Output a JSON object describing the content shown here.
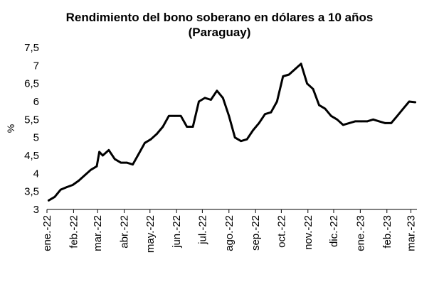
{
  "chart_data": {
    "type": "line",
    "title": "Rendimiento del bono soberano en dólares a 10 años",
    "subtitle": "(Paraguay)",
    "xlabel": "",
    "ylabel": "%",
    "ylim": [
      3,
      7.5
    ],
    "yticks": [
      "3",
      "3,5",
      "4",
      "4,5",
      "5",
      "5,5",
      "6",
      "6,5",
      "7",
      "7,5"
    ],
    "xticks": [
      "ene.-22",
      "feb.-22",
      "mar.-22",
      "abr.-22",
      "may.-22",
      "jun.-22",
      "jul.-22",
      "ago.-22",
      "sep.-22",
      "oct.-22",
      "nov.-22",
      "dic.-22",
      "ene.-23",
      "feb.-23",
      "mar.-23"
    ],
    "grid": false,
    "line_color": "#000000",
    "series": [
      {
        "x": [
          "2022-01-03",
          "2022-01-10",
          "2022-01-17",
          "2022-01-24",
          "2022-01-31",
          "2022-02-07",
          "2022-02-14",
          "2022-02-21",
          "2022-02-28",
          "2022-03-03",
          "2022-03-07",
          "2022-03-14",
          "2022-03-21",
          "2022-03-28",
          "2022-04-04",
          "2022-04-11",
          "2022-04-18",
          "2022-04-25",
          "2022-05-02",
          "2022-05-09",
          "2022-05-16",
          "2022-05-23",
          "2022-05-30",
          "2022-06-06",
          "2022-06-13",
          "2022-06-20",
          "2022-06-27",
          "2022-07-04",
          "2022-07-11",
          "2022-07-18",
          "2022-07-25",
          "2022-08-01",
          "2022-08-08",
          "2022-08-15",
          "2022-08-22",
          "2022-08-29",
          "2022-09-05",
          "2022-09-12",
          "2022-09-19",
          "2022-09-26",
          "2022-10-03",
          "2022-10-10",
          "2022-10-17",
          "2022-10-24",
          "2022-10-31",
          "2022-11-07",
          "2022-11-14",
          "2022-11-21",
          "2022-11-28",
          "2022-12-05",
          "2022-12-12",
          "2022-12-19",
          "2022-12-26",
          "2023-01-02",
          "2023-01-09",
          "2023-01-16",
          "2023-01-23",
          "2023-01-30",
          "2023-02-06",
          "2023-02-13",
          "2023-02-20",
          "2023-02-27",
          "2023-03-06"
        ],
        "values": [
          3.25,
          3.35,
          3.55,
          3.62,
          3.68,
          3.8,
          3.95,
          4.1,
          4.2,
          4.6,
          4.5,
          4.65,
          4.4,
          4.3,
          4.3,
          4.25,
          4.55,
          4.85,
          4.95,
          5.1,
          5.3,
          5.6,
          5.6,
          5.6,
          5.3,
          5.3,
          6.0,
          6.1,
          6.05,
          6.3,
          6.1,
          5.6,
          5.0,
          4.9,
          4.95,
          5.2,
          5.4,
          5.65,
          5.7,
          6.0,
          6.7,
          6.75,
          6.9,
          7.05,
          6.5,
          6.35,
          5.9,
          5.8,
          5.6,
          5.5,
          5.35,
          5.4,
          5.45,
          5.45,
          5.45,
          5.5,
          5.45,
          5.4,
          5.4,
          5.6,
          5.8,
          6.0,
          5.98
        ]
      }
    ]
  }
}
